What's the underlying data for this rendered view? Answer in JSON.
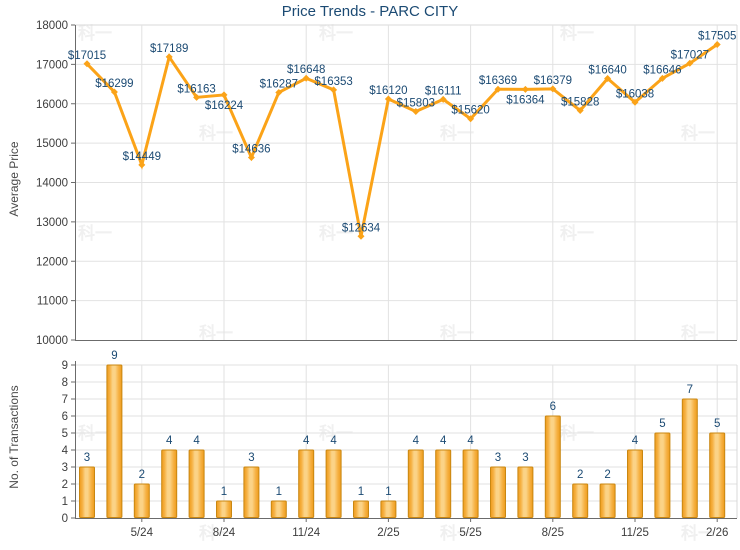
{
  "title": "Price Trends - PARC CITY",
  "watermark_text": "科一",
  "colors": {
    "line_orange": "#FBA318",
    "bar_edge": "#EE9B1B",
    "bar_mid": "#F6B245",
    "bar_highlight": "#FBD387",
    "bar_border": "#C98712",
    "label_navy": "#1B4A73",
    "grid_gray": "#E2E2E2",
    "border_gray": "#D8D8D8",
    "axis_gray": "#6B6B6B",
    "tick_text": "#3D3D3D",
    "axis_title_gray": "#4A4A4A",
    "watermark_gray": "#F0F0F0"
  },
  "chart_data": [
    {
      "type": "line",
      "title": "Price Trends - PARC CITY",
      "ylabel": "Average Price",
      "ylim": [
        10000,
        18000
      ],
      "ytick_step": 1000,
      "grid": true,
      "legend": "none",
      "values": [
        17015,
        16299,
        14449,
        17189,
        16163,
        16224,
        14636,
        16287,
        16648,
        16353,
        12634,
        16120,
        15803,
        16111,
        15620,
        16369,
        16364,
        16379,
        15828,
        16640,
        16038,
        16646,
        17027,
        17505
      ],
      "point_labels": [
        "$17015",
        "$16299",
        "$14449",
        "$17189",
        "$16163",
        "$16224",
        "$14636",
        "$16287",
        "$16648",
        "$16353",
        "$12634",
        "$16120",
        "$15803",
        "$16111",
        "$15620",
        "$16369",
        "$16364",
        "$16379",
        "$15828",
        "$16640",
        "$16038",
        "$16646",
        "$17027",
        "$17505"
      ],
      "x_tick_labels": [
        "5/24",
        "8/24",
        "11/24",
        "2/25",
        "5/25",
        "8/25",
        "11/25",
        "2/26"
      ],
      "x_tick_indices": [
        2,
        5,
        8,
        11,
        14,
        17,
        20,
        23
      ]
    },
    {
      "type": "bar",
      "title": "",
      "ylabel": "No. of Transactions",
      "ylim": [
        0,
        9
      ],
      "ytick_step": 1,
      "grid": true,
      "legend": "none",
      "values": [
        3,
        9,
        2,
        4,
        4,
        1,
        3,
        1,
        4,
        4,
        1,
        1,
        4,
        4,
        4,
        3,
        3,
        6,
        2,
        2,
        4,
        5,
        7,
        5
      ],
      "x_tick_labels": [
        "5/24",
        "8/24",
        "11/24",
        "2/25",
        "5/25",
        "8/25",
        "11/25",
        "2/26"
      ],
      "x_tick_indices": [
        2,
        5,
        8,
        11,
        14,
        17,
        20,
        23
      ]
    }
  ]
}
